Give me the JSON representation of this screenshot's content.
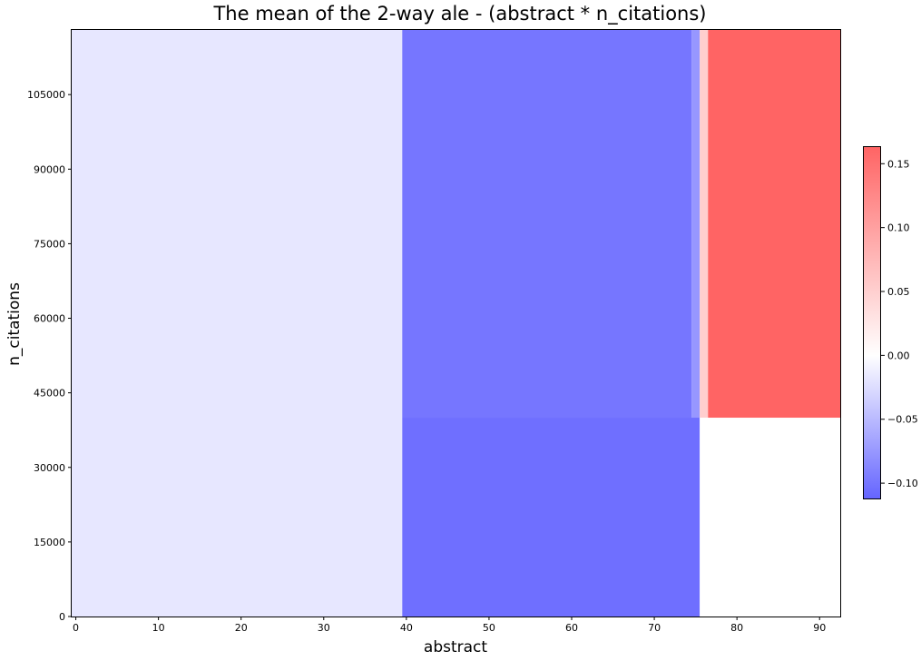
{
  "chart_data": {
    "type": "heatmap",
    "title": "The mean of the 2-way ale - (abstract * n_citations)",
    "xlabel": "abstract",
    "ylabel": "n_citations",
    "xlim": [
      -0.5,
      92.5
    ],
    "ylim": [
      0,
      118000
    ],
    "xticks": [
      "0",
      "10",
      "20",
      "30",
      "40",
      "50",
      "60",
      "70",
      "80",
      "90"
    ],
    "yticks": [
      "0",
      "15000",
      "30000",
      "45000",
      "60000",
      "75000",
      "90000",
      "105000"
    ],
    "grid": false,
    "colorbar": {
      "range": [
        -0.112,
        0.163
      ],
      "ticks": [
        "−0.10",
        "−0.05",
        "0.00",
        "0.05",
        "0.10",
        "0.15"
      ],
      "colormap": "bwr",
      "low_color": "#6464ff",
      "mid_color": "#ffffff",
      "high_color": "#ff6464"
    },
    "cells": [
      {
        "x": [
          -0.5,
          39.5
        ],
        "y": [
          0,
          40000
        ],
        "value": -0.017
      },
      {
        "x": [
          -0.5,
          39.5
        ],
        "y": [
          40000,
          118000
        ],
        "value": -0.017
      },
      {
        "x": [
          39.5,
          75.5
        ],
        "y": [
          0,
          40000
        ],
        "value": -0.104
      },
      {
        "x": [
          39.5,
          74.5
        ],
        "y": [
          40000,
          118000
        ],
        "value": -0.099
      },
      {
        "x": [
          74.5,
          75.5
        ],
        "y": [
          40000,
          118000
        ],
        "value": -0.075
      },
      {
        "x": [
          75.5,
          76.5
        ],
        "y": [
          40000,
          118000
        ],
        "value": 0.052
      },
      {
        "x": [
          75.5,
          92.5
        ],
        "y": [
          0,
          40000
        ],
        "value": 0.0
      },
      {
        "x": [
          76.5,
          92.5
        ],
        "y": [
          40000,
          118000
        ],
        "value": 0.163
      }
    ]
  }
}
